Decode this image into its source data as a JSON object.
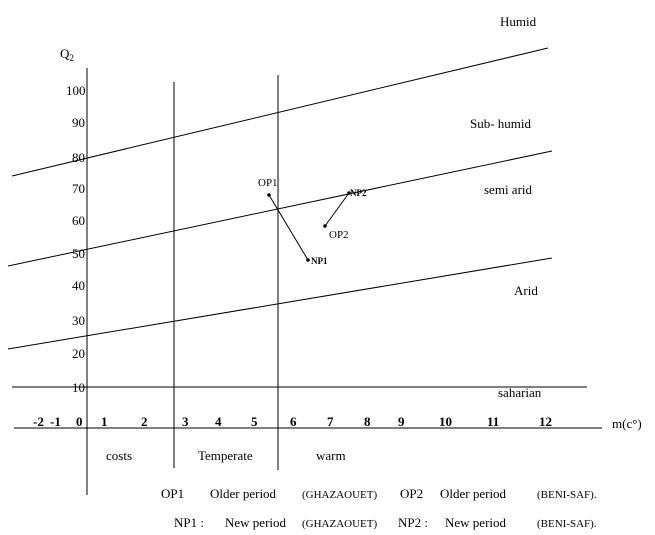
{
  "axes": {
    "y_label_main": "Q",
    "y_label_sub": "2",
    "x_label": "m(c°)",
    "y_ticks": [
      "100",
      "90",
      "80",
      "70",
      "60",
      "50",
      "40",
      "30",
      "20",
      "10"
    ],
    "x_ticks": [
      "-2",
      "-1",
      "0",
      "1",
      "2",
      "3",
      "4",
      "5",
      "6",
      "7",
      "8",
      "9",
      "10",
      "11",
      "12"
    ]
  },
  "climate_zones": [
    "Humid",
    "Sub- humid",
    "semi arid",
    "Arid",
    "saharian"
  ],
  "temperature_zones": [
    "costs",
    "Temperate",
    "warm"
  ],
  "points": {
    "op1": "OP1",
    "op2": "OP2",
    "np1": "NP1",
    "np2": "NP2"
  },
  "legend": {
    "line1": {
      "op1": "OP1",
      "op1_desc": "Older period",
      "op1_site": "(GHAZAOUET)",
      "op2": "OP2",
      "op2_desc": "Older period",
      "op2_site": "(BENI-SAF)."
    },
    "line2": {
      "np1": "NP1 :",
      "np1_desc": "New period",
      "np1_site": "(GHAZAOUET)",
      "np2": "NP2 :",
      "np2_desc": "New period",
      "np2_site": "(BENI-SAF)."
    }
  }
}
